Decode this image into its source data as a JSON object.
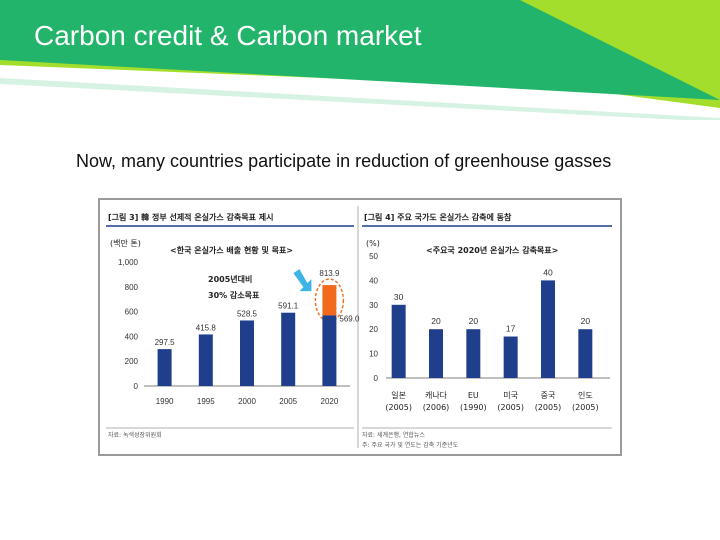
{
  "slide": {
    "title": "Carbon credit & Carbon market",
    "subtitle": "Now, many countries participate in reduction of greenhouse gasses"
  },
  "colors": {
    "banner_dark": "#22b46a",
    "banner_light": "#a4de2c",
    "bar_blue": "#1f3f8c",
    "bar_orange": "#f26b1d",
    "arrow_cyan": "#3cb4e6",
    "header_blue": "#1f3f8c"
  },
  "chart_data": [
    {
      "type": "bar",
      "title": "[그림 3] 韓 정부 선제적 온실가스 감축목표 제시",
      "subtitle": "<한국 온실가스 배출 현황 및 목표>",
      "ylabel": "(백만 톤)",
      "ylim": [
        0,
        1000
      ],
      "yticks": [
        "1,000",
        "800",
        "600",
        "400",
        "200",
        "0"
      ],
      "categories": [
        "1990",
        "1995",
        "2000",
        "2005",
        "2020"
      ],
      "values": [
        297.5,
        415.8,
        528.5,
        591.1,
        569.0
      ],
      "value_labels": [
        "297.5",
        "415.8",
        "528.5",
        "591.1",
        "569.0"
      ],
      "target": {
        "category": "2020",
        "value": 813.9,
        "label": "813.9"
      },
      "annotation": [
        "2005년대비",
        "30% 감소목표"
      ],
      "source": "자료: 녹색성장위원회"
    },
    {
      "type": "bar",
      "title": "[그림 4] 주요 국가도 온실가스 감축에 동참",
      "subtitle": "<주요국 2020년 온실가스 감축목표>",
      "ylabel": "(%)",
      "ylim": [
        0,
        50
      ],
      "yticks": [
        "50",
        "40",
        "30",
        "20",
        "10",
        "0"
      ],
      "categories": [
        "일본",
        "캐나다",
        "EU",
        "미국",
        "중국",
        "인도"
      ],
      "category_years": [
        "(2005)",
        "(2006)",
        "(1990)",
        "(2005)",
        "(2005)",
        "(2005)"
      ],
      "values": [
        30,
        20,
        20,
        17,
        40,
        20
      ],
      "value_labels": [
        "30",
        "20",
        "20",
        "17",
        "40",
        "20"
      ],
      "source": "자료: 세계은행, 연합뉴스",
      "note": "주: 주요 국가 및 연도는 감축 기준년도"
    }
  ]
}
